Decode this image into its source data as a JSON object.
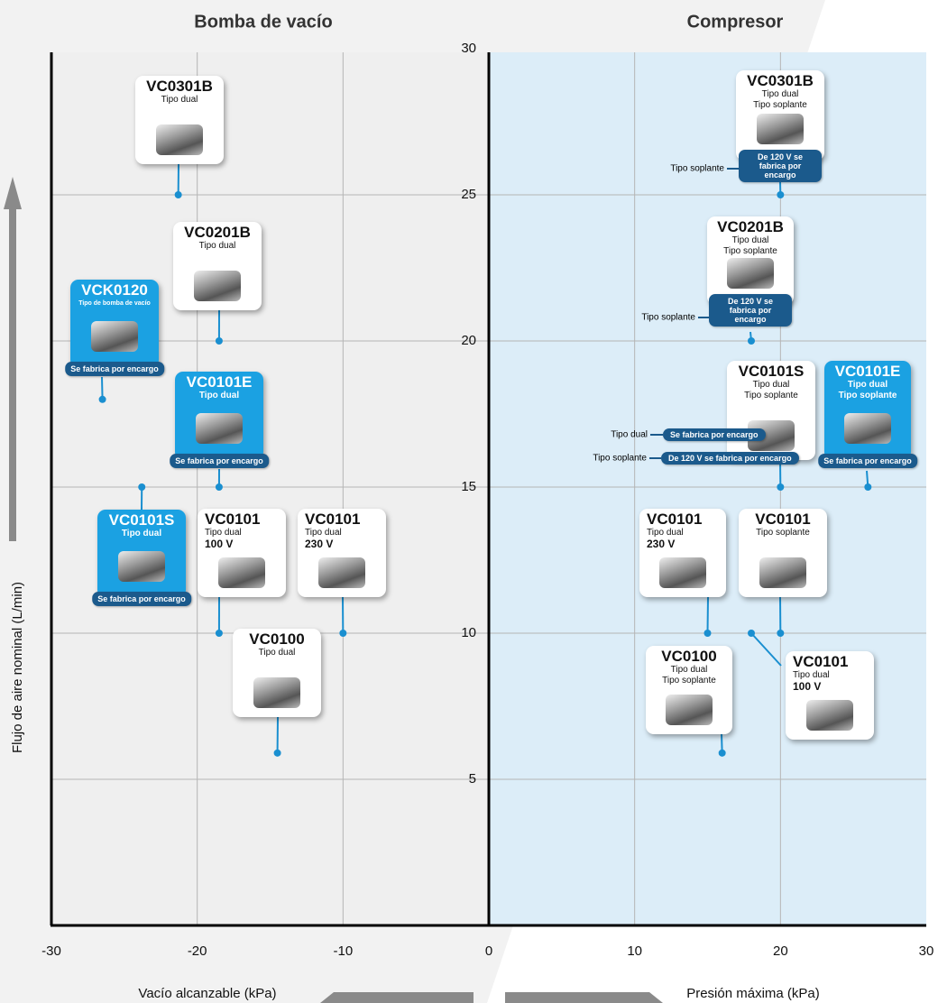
{
  "chart_data": {
    "type": "scatter",
    "title_left": "Bomba de vacío",
    "title_right": "Compresor",
    "y_label": "Flujo de aire nominal (L/min)",
    "x_label_left": "Vacío alcanzable (kPa)",
    "x_label_right": "Presión máxima (kPa)",
    "xlim": [
      -30,
      30
    ],
    "xticks": [
      -30,
      -20,
      -10,
      0,
      10,
      20,
      30
    ],
    "ylim": [
      0,
      30
    ],
    "yticks": [
      5,
      10,
      15,
      20,
      25,
      30
    ],
    "grid": true,
    "marker_color": "#1a8fd0",
    "badge_color": "#1b5a8c",
    "left_color": "#efefef",
    "right_color": "#dcedf8",
    "products": [
      {
        "name": "VC0301B",
        "types": [
          "Tipo dual"
        ],
        "x": -21.3,
        "y": 25,
        "color": "#ffffff"
      },
      {
        "name": "VC0201B",
        "types": [
          "Tipo dual"
        ],
        "x": -18.5,
        "y": 20,
        "color": "#ffffff"
      },
      {
        "name": "VCK0120",
        "types": [
          "Tipo de bomba de vacío"
        ],
        "x": -26.5,
        "y": 18,
        "color": "#1ba1e2",
        "badge": "Se fabrica por encargo"
      },
      {
        "name": "VC0101E",
        "types": [
          "Tipo dual"
        ],
        "x": -18.5,
        "y": 15,
        "color": "#1ba1e2",
        "badge": "Se fabrica por encargo"
      },
      {
        "name": "VC0101S",
        "types": [
          "Tipo dual"
        ],
        "x": -23.8,
        "y": 15,
        "color": "#1ba1e2",
        "badge": "Se fabrica por encargo"
      },
      {
        "name": "VC0101",
        "types": [
          "Tipo dual"
        ],
        "voltage": "100 V",
        "x": -18.5,
        "y": 10,
        "color": "#ffffff"
      },
      {
        "name": "VC0101",
        "types": [
          "Tipo dual"
        ],
        "voltage": "230 V",
        "x": -10,
        "y": 10,
        "color": "#ffffff"
      },
      {
        "name": "VC0100",
        "types": [
          "Tipo dual"
        ],
        "x": -14.5,
        "y": 5.9,
        "color": "#ffffff"
      },
      {
        "name": "VC0301B",
        "types": [
          "Tipo dual",
          "Tipo soplante"
        ],
        "x": 20,
        "y": 25,
        "color": "#ffffff",
        "badge": "De 120 V se fabrica por encargo",
        "callouts": [
          {
            "label": "Tipo soplante"
          }
        ]
      },
      {
        "name": "VC0201B",
        "types": [
          "Tipo dual",
          "Tipo soplante"
        ],
        "x": 18,
        "y": 20,
        "color": "#ffffff",
        "badge": "De 120 V se fabrica por encargo",
        "callouts": [
          {
            "label": "Tipo soplante"
          }
        ]
      },
      {
        "name": "VC0101S",
        "types": [
          "Tipo dual",
          "Tipo soplante"
        ],
        "x": 20,
        "y": 15,
        "color": "#ffffff",
        "callouts": [
          {
            "label": "Tipo dual",
            "badge": "Se fabrica por encargo"
          },
          {
            "label": "Tipo soplante",
            "badge": "De 120 V se fabrica por encargo"
          }
        ]
      },
      {
        "name": "VC0101E",
        "types": [
          "Tipo dual",
          "Tipo soplante"
        ],
        "x": 26,
        "y": 15,
        "color": "#1ba1e2",
        "badge": "Se fabrica por encargo"
      },
      {
        "name": "VC0101",
        "types": [
          "Tipo dual"
        ],
        "voltage": "230 V",
        "x": 15,
        "y": 10,
        "color": "#ffffff"
      },
      {
        "name": "VC0101",
        "types": [
          "Tipo soplante"
        ],
        "x": 20,
        "y": 10,
        "color": "#ffffff"
      },
      {
        "name": "VC0101",
        "types": [
          "Tipo dual"
        ],
        "voltage": "100 V",
        "x": 18,
        "y": 10,
        "color": "#ffffff"
      },
      {
        "name": "VC0100",
        "types": [
          "Tipo dual",
          "Tipo soplante"
        ],
        "x": 16,
        "y": 5.9,
        "color": "#ffffff"
      }
    ]
  }
}
